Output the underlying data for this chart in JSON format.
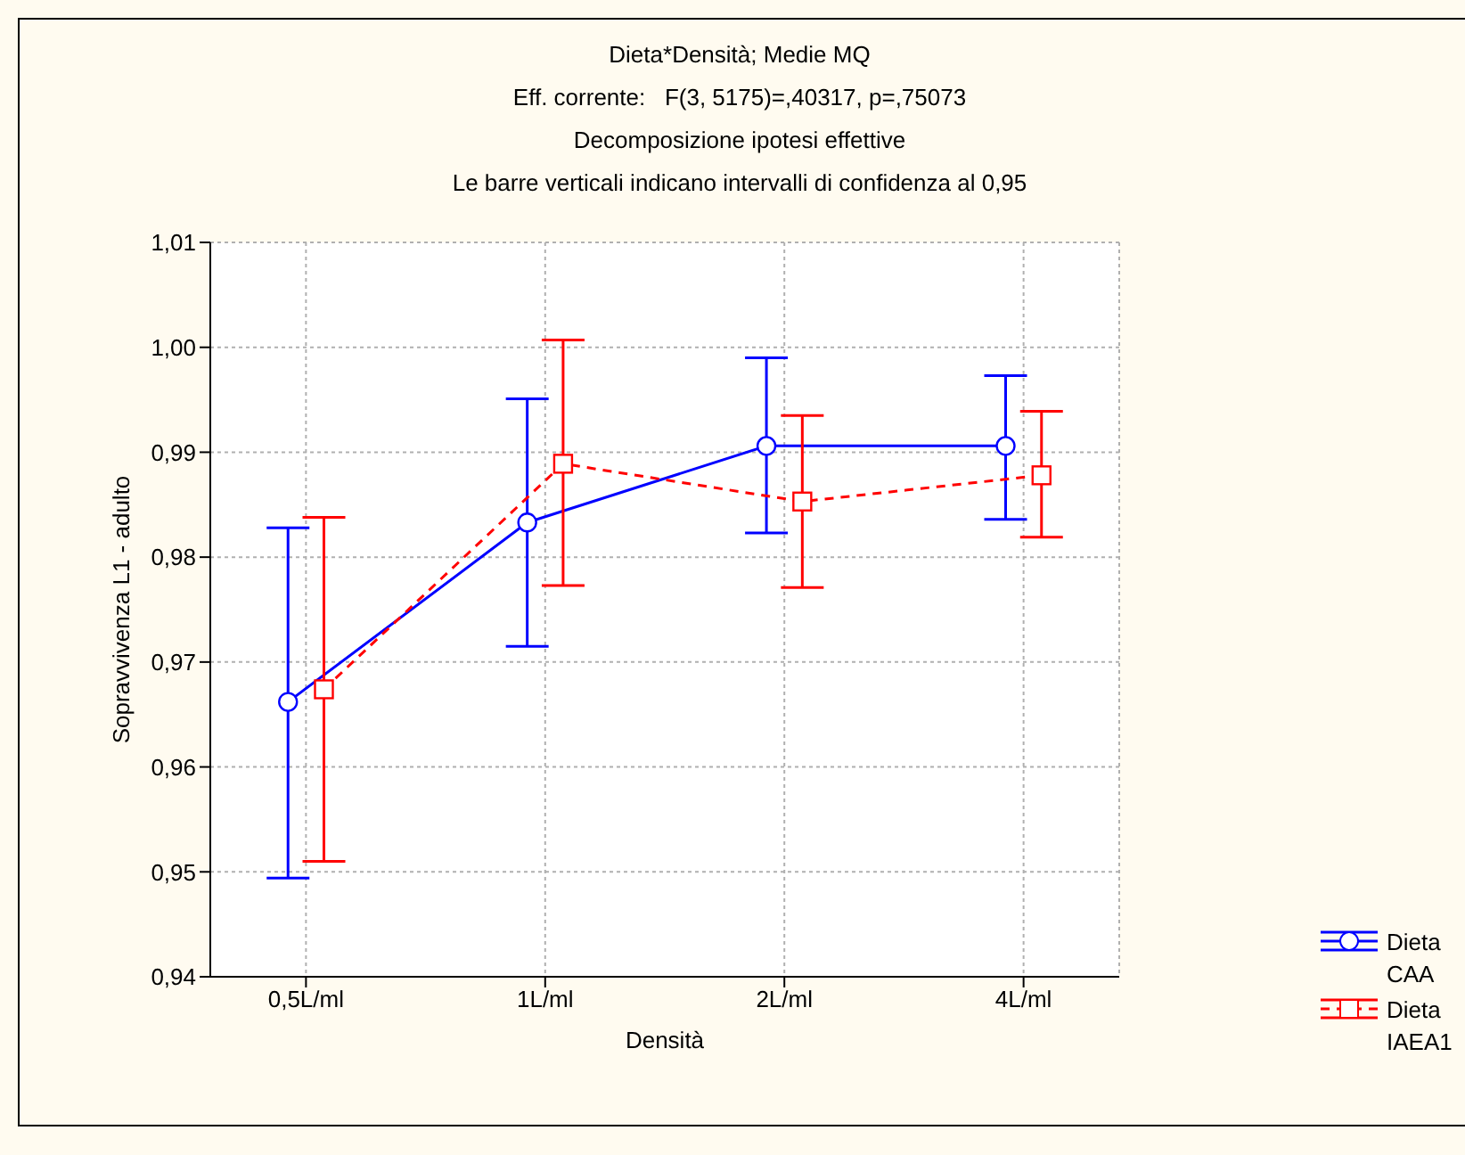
{
  "chart_data": {
    "type": "line",
    "title": "Dieta*Densità; Medie MQ",
    "subtitle": "Eff. corrente:   F(3, 5175)=,40317, p=,75073",
    "annotations": [
      "Decomposizione ipotesi effettive",
      "Le barre verticali indicano intervalli di confidenza al 0,95"
    ],
    "xlabel": "Densità",
    "ylabel": "Sopravvivenza L1 - adulto",
    "categories": [
      "0,5L/ml",
      "1L/ml",
      "2L/ml",
      "4L/ml"
    ],
    "series": [
      {
        "name": "Dieta CAA",
        "color": "#0000ff",
        "marker": "circle",
        "line_style": "solid",
        "values": [
          0.9662,
          0.9833,
          0.9906,
          0.9906
        ],
        "errors": [
          [
            0.9494,
            0.9828
          ],
          [
            0.9715,
            0.9951
          ],
          [
            0.9823,
            0.999
          ],
          [
            0.9836,
            0.9973
          ]
        ]
      },
      {
        "name": "Dieta IAEA1",
        "color": "#ff0000",
        "marker": "square",
        "line_style": "dashed",
        "values": [
          0.9674,
          0.9889,
          0.9853,
          0.9878
        ],
        "errors": [
          [
            0.951,
            0.9838
          ],
          [
            0.9773,
            1.0007
          ],
          [
            0.9771,
            0.9935
          ],
          [
            0.9819,
            0.9939
          ]
        ]
      }
    ],
    "ylim": [
      0.94,
      1.01
    ],
    "yticks": [
      {
        "value": 0.94,
        "label": "0,94"
      },
      {
        "value": 0.95,
        "label": "0,95"
      },
      {
        "value": 0.96,
        "label": "0,96"
      },
      {
        "value": 0.97,
        "label": "0,97"
      },
      {
        "value": 0.98,
        "label": "0,98"
      },
      {
        "value": 0.99,
        "label": "0,99"
      },
      {
        "value": 1.0,
        "label": "1,00"
      },
      {
        "value": 1.01,
        "label": "1,01"
      }
    ],
    "grid": true,
    "legend": "bottom right"
  }
}
